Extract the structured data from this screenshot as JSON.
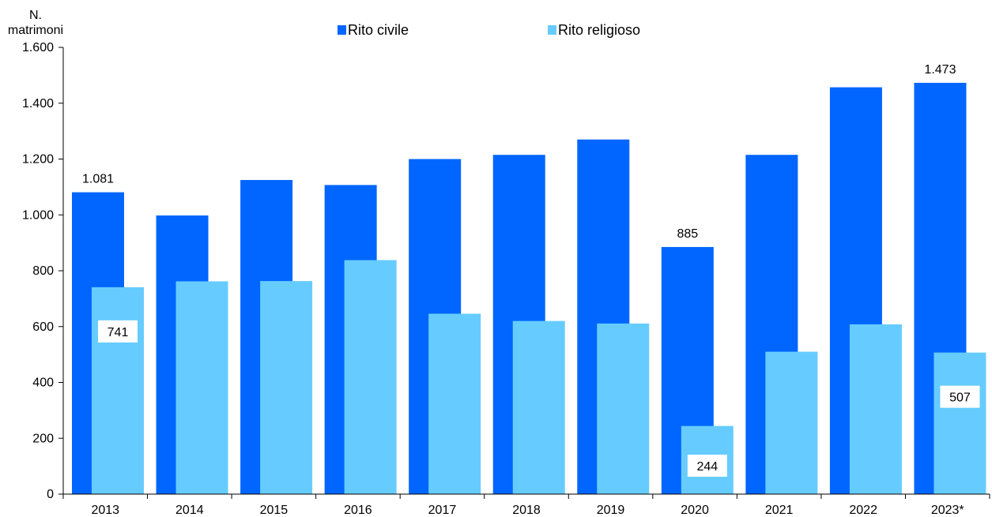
{
  "chart_data": {
    "type": "bar",
    "title": "",
    "xlabel": "",
    "ylabel": "N. matrimoni",
    "ylabel_lines": [
      "N.",
      "matrimoni"
    ],
    "ylim": [
      0,
      1600
    ],
    "yticks": [
      0,
      200,
      400,
      600,
      800,
      1000,
      1200,
      1400,
      1600
    ],
    "ytick_labels": [
      "0",
      "200",
      "400",
      "600",
      "800",
      "1.000",
      "1.200",
      "1.400",
      "1.600"
    ],
    "categories": [
      "2013",
      "2014",
      "2015",
      "2016",
      "2017",
      "2018",
      "2019",
      "2020",
      "2021",
      "2022",
      "2023*"
    ],
    "series": [
      {
        "name": "Rito civile",
        "color": "#0066ff",
        "values": [
          1081,
          998,
          1125,
          1107,
          1200,
          1215,
          1270,
          885,
          1215,
          1457,
          1473
        ]
      },
      {
        "name": "Rito religioso",
        "color": "#66ccff",
        "values": [
          741,
          762,
          763,
          838,
          646,
          620,
          611,
          244,
          510,
          608,
          507
        ]
      }
    ],
    "data_labels": [
      {
        "series": 0,
        "index": 0,
        "text": "1.081",
        "boxed": false
      },
      {
        "series": 0,
        "index": 7,
        "text": "885",
        "boxed": false
      },
      {
        "series": 0,
        "index": 10,
        "text": "1.473",
        "boxed": false
      },
      {
        "series": 1,
        "index": 0,
        "text": "741",
        "boxed": true
      },
      {
        "series": 1,
        "index": 7,
        "text": "244",
        "boxed": true
      },
      {
        "series": 1,
        "index": 10,
        "text": "507",
        "boxed": true
      }
    ],
    "grid": false,
    "legend_position": "top-center"
  }
}
